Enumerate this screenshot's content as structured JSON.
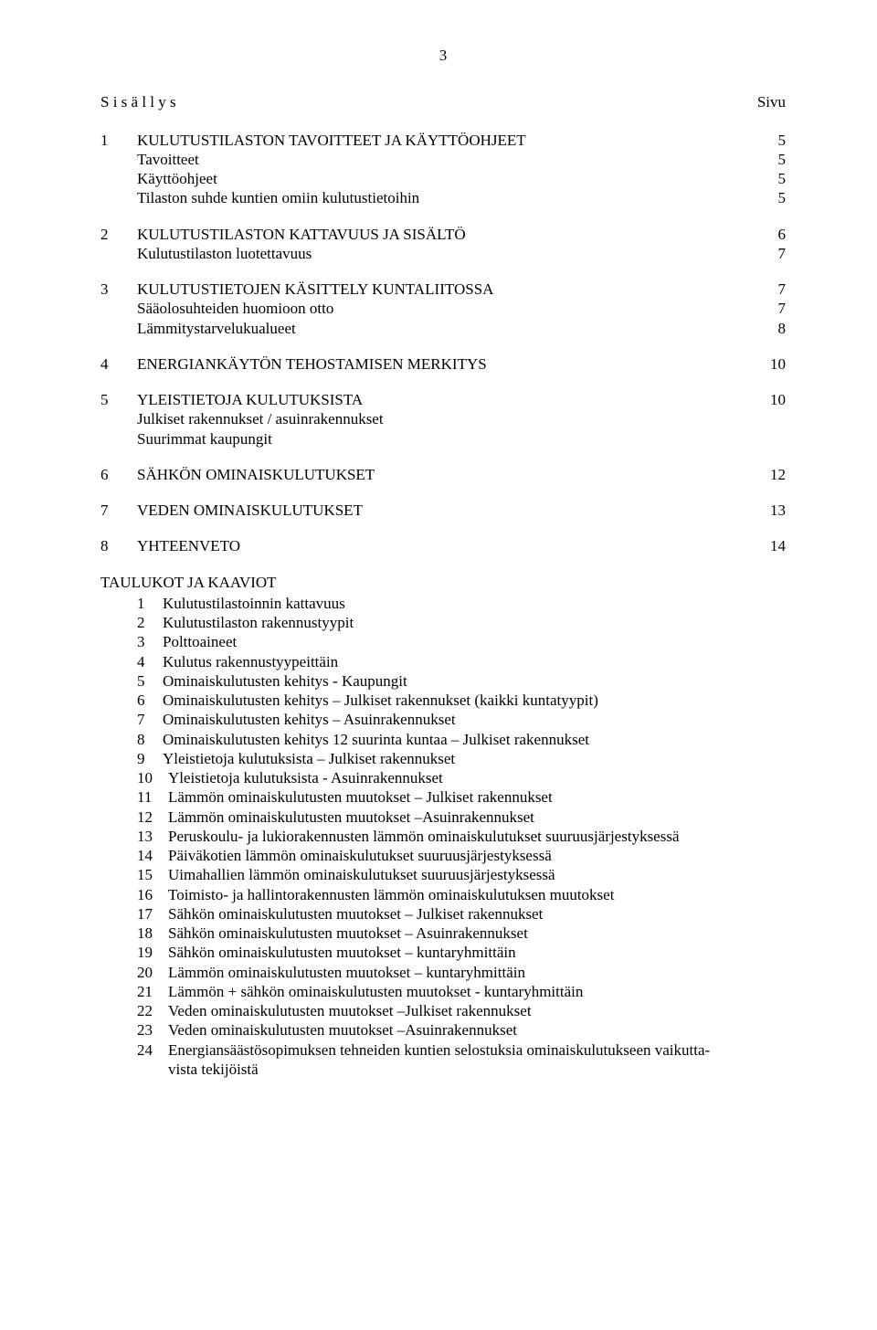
{
  "page_number": "3",
  "header": {
    "left": "S i s ä l l y s",
    "right": "Sivu"
  },
  "toc": [
    {
      "num": "1",
      "lines": [
        {
          "text": "KULUTUSTILASTON TAVOITTEET JA KÄYTTÖOHJEET",
          "page": "5"
        },
        {
          "text": "Tavoitteet",
          "page": "5"
        },
        {
          "text": "Käyttöohjeet",
          "page": "5"
        },
        {
          "text": "Tilaston suhde kuntien omiin kulutustietoihin",
          "page": "5"
        }
      ]
    },
    {
      "num": "2",
      "lines": [
        {
          "text": "KULUTUSTILASTON KATTAVUUS JA SISÄLTÖ",
          "page": "6"
        },
        {
          "text": "Kulutustilaston luotettavuus",
          "page": "7"
        }
      ]
    },
    {
      "num": "3",
      "lines": [
        {
          "text": "KULUTUSTIETOJEN KÄSITTELY KUNTALIITOSSA",
          "page": "7"
        },
        {
          "text": "Sääolosuhteiden huomioon otto",
          "page": "7"
        },
        {
          "text": "Lämmitystarvelukualueet",
          "page": "8"
        }
      ]
    },
    {
      "num": "4",
      "lines": [
        {
          "text": "ENERGIANKÄYTÖN TEHOSTAMISEN MERKITYS",
          "page": "10"
        }
      ]
    },
    {
      "num": "5",
      "lines": [
        {
          "text": "YLEISTIETOJA KULUTUKSISTA",
          "page": "10"
        },
        {
          "text": "Julkiset rakennukset / asuinrakennukset",
          "page": ""
        },
        {
          "text": "Suurimmat kaupungit",
          "page": ""
        }
      ]
    },
    {
      "num": "6",
      "lines": [
        {
          "text": "SÄHKÖN OMINAISKULUTUKSET",
          "page": "12"
        }
      ]
    },
    {
      "num": "7",
      "lines": [
        {
          "text": "VEDEN OMINAISKULUTUKSET",
          "page": "13"
        }
      ]
    },
    {
      "num": "8",
      "lines": [
        {
          "text": "YHTEENVETO",
          "page": "14"
        }
      ]
    }
  ],
  "tk_heading": "TAULUKOT  JA KAAVIOT",
  "tk": [
    {
      "n": "1",
      "t": "Kulutustilastoinnin kattavuus"
    },
    {
      "n": "2",
      "t": "Kulutustilaston rakennustyypit"
    },
    {
      "n": "3",
      "t": "Polttoaineet"
    },
    {
      "n": "4",
      "t": "Kulutus rakennustyypeittäin"
    },
    {
      "n": "5",
      "t": "Ominaiskulutusten kehitys - Kaupungit"
    },
    {
      "n": "6",
      "t": "Ominaiskulutusten kehitys – Julkiset rakennukset (kaikki kuntatyypit)"
    },
    {
      "n": "7",
      "t": "Ominaiskulutusten kehitys – Asuinrakennukset"
    },
    {
      "n": "8",
      "t": "Ominaiskulutusten kehitys 12 suurinta kuntaa – Julkiset rakennukset"
    },
    {
      "n": "9",
      "t": "Yleistietoja kulutuksista – Julkiset rakennukset"
    },
    {
      "n": "10",
      "t": "Yleistietoja kulutuksista - Asuinrakennukset"
    },
    {
      "n": "11",
      "t": "Lämmön ominaiskulutusten muutokset – Julkiset rakennukset"
    },
    {
      "n": "12",
      "t": "Lämmön ominaiskulutusten muutokset –Asuinrakennukset"
    },
    {
      "n": "13",
      "t": "Peruskoulu- ja lukiorakennusten lämmön ominaiskulutukset suuruusjärjestyksessä"
    },
    {
      "n": "14",
      "t": "Päiväkotien lämmön ominaiskulutukset suuruusjärjestyksessä"
    },
    {
      "n": "15",
      "t": "Uimahallien lämmön ominaiskulutukset suuruusjärjestyksessä"
    },
    {
      "n": "16",
      "t": "Toimisto- ja hallintorakennusten lämmön ominaiskulutuksen muutokset"
    },
    {
      "n": "17",
      "t": "Sähkön ominaiskulutusten muutokset – Julkiset rakennukset"
    },
    {
      "n": "18",
      "t": "Sähkön ominaiskulutusten muutokset – Asuinrakennukset"
    },
    {
      "n": "19",
      "t": "Sähkön ominaiskulutusten muutokset – kuntaryhmittäin"
    },
    {
      "n": "20",
      "t": "Lämmön ominaiskulutusten muutokset – kuntaryhmittäin"
    },
    {
      "n": "21",
      "t": "Lämmön + sähkön ominaiskulutusten muutokset - kuntaryhmittäin"
    },
    {
      "n": "22",
      "t": "Veden ominaiskulutusten muutokset –Julkiset rakennukset"
    },
    {
      "n": "23",
      "t": "Veden ominaiskulutusten muutokset –Asuinrakennukset"
    },
    {
      "n": "24",
      "t": "Energiansäästösopimuksen tehneiden kuntien selostuksia ominaiskulutukseen vaikuttavista tekijöistä",
      "wrap": true,
      "line1": "Energiansäästösopimuksen tehneiden kuntien selostuksia ominaiskulutukseen vaikutta-",
      "line2": "vista tekijöistä"
    }
  ]
}
